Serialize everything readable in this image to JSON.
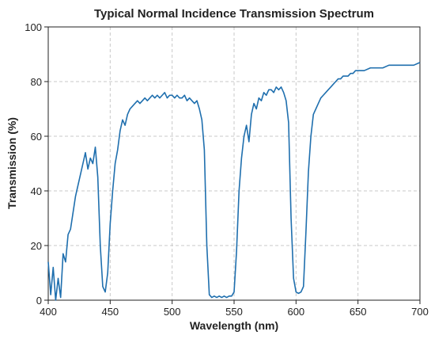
{
  "chart_data": {
    "type": "line",
    "title": "Typical Normal Incidence Transmission Spectrum",
    "x_label": "Wavelength (nm)",
    "y_label": "Transmission (%)",
    "x": [
      400,
      402,
      404,
      406,
      408,
      410,
      412,
      414,
      416,
      418,
      420,
      422,
      424,
      426,
      428,
      430,
      432,
      434,
      436,
      438,
      440,
      442,
      444,
      446,
      448,
      450,
      452,
      454,
      456,
      458,
      460,
      462,
      464,
      466,
      468,
      470,
      472,
      474,
      476,
      478,
      480,
      482,
      484,
      486,
      488,
      490,
      492,
      494,
      496,
      498,
      500,
      502,
      504,
      506,
      508,
      510,
      512,
      514,
      516,
      518,
      520,
      522,
      524,
      526,
      528,
      530,
      532,
      534,
      536,
      538,
      540,
      542,
      544,
      546,
      548,
      550,
      552,
      554,
      556,
      558,
      560,
      562,
      564,
      566,
      568,
      570,
      572,
      574,
      576,
      578,
      580,
      582,
      584,
      586,
      588,
      590,
      592,
      594,
      596,
      598,
      600,
      602,
      604,
      606,
      608,
      610,
      612,
      614,
      616,
      618,
      620,
      622,
      624,
      626,
      628,
      630,
      632,
      634,
      636,
      638,
      640,
      642,
      644,
      646,
      648,
      650,
      655,
      660,
      665,
      670,
      675,
      680,
      685,
      690,
      695,
      700
    ],
    "series": [
      {
        "name": "Transmission",
        "color": "#1f6fae",
        "values": [
          14,
          2,
          12,
          0,
          8,
          1,
          17,
          14,
          24,
          26,
          32,
          38,
          42,
          46,
          50,
          54,
          48,
          52,
          50,
          56,
          45,
          20,
          5,
          3,
          10,
          28,
          40,
          50,
          55,
          62,
          66,
          64,
          68,
          70,
          71,
          72,
          73,
          72,
          73,
          74,
          73,
          74,
          75,
          74,
          75,
          74,
          75,
          76,
          74,
          75,
          75,
          74,
          75,
          74,
          74,
          75,
          73,
          74,
          73,
          72,
          73,
          70,
          66,
          55,
          20,
          2,
          1,
          1.5,
          1,
          1.5,
          1,
          1.5,
          1,
          1.5,
          1.5,
          3,
          18,
          40,
          52,
          60,
          64,
          58,
          68,
          72,
          70,
          74,
          73,
          76,
          75,
          77,
          77,
          76,
          78,
          77,
          78,
          76,
          73,
          65,
          30,
          8,
          3,
          2.5,
          3,
          5,
          25,
          47,
          60,
          68,
          70,
          72,
          74,
          75,
          76,
          77,
          78,
          79,
          80,
          81,
          81,
          82,
          82,
          82,
          83,
          83,
          84,
          84,
          84,
          85,
          85,
          85,
          86,
          86,
          86,
          86,
          86,
          87
        ]
      }
    ],
    "xlim": [
      400,
      700
    ],
    "xticks": [
      400,
      450,
      500,
      550,
      600,
      650,
      700
    ],
    "ylim": [
      0,
      100
    ],
    "yticks": [
      0,
      20,
      40,
      60,
      80,
      100
    ],
    "grid": true
  }
}
